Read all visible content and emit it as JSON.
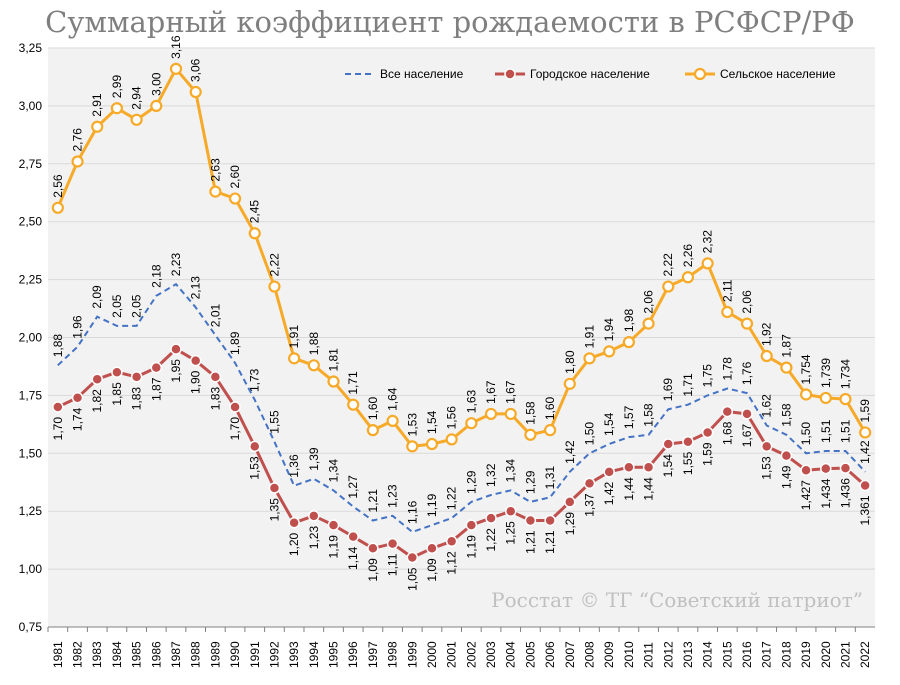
{
  "chart_data": {
    "type": "line",
    "title": "Суммарный коэффициент рождаемости в РСФСР/РФ",
    "watermark": "Росстат © ТГ “Советский патриот”",
    "x": [
      "1981",
      "1982",
      "1983",
      "1984",
      "1985",
      "1986",
      "1987",
      "1988",
      "1989",
      "1990",
      "1991",
      "1992",
      "1993",
      "1994",
      "1995",
      "1996",
      "1997",
      "1998",
      "1999",
      "2000",
      "2001",
      "2002",
      "2003",
      "2004",
      "2005",
      "2006",
      "2007",
      "2008",
      "2009",
      "2010",
      "2011",
      "2012",
      "2013",
      "2014",
      "2015",
      "2016",
      "2017",
      "2018",
      "2019",
      "2020",
      "2021",
      "2022"
    ],
    "ylim": [
      0.75,
      3.25
    ],
    "yticks": [
      "0,75",
      "1,00",
      "1,25",
      "1,50",
      "1,75",
      "2,00",
      "2,25",
      "2,50",
      "2,75",
      "3,00",
      "3,25"
    ],
    "grid": true,
    "legend_position": "top",
    "series": [
      {
        "name": "Все население",
        "color": "#4472c4",
        "style": "dashed",
        "values": [
          1.88,
          1.96,
          2.09,
          2.05,
          2.05,
          2.18,
          2.23,
          2.13,
          2.01,
          1.89,
          1.73,
          1.55,
          1.36,
          1.39,
          1.34,
          1.27,
          1.21,
          1.23,
          1.16,
          1.19,
          1.22,
          1.29,
          1.32,
          1.34,
          1.29,
          1.31,
          1.42,
          1.5,
          1.54,
          1.57,
          1.58,
          1.69,
          1.71,
          1.75,
          1.78,
          1.76,
          1.62,
          1.58,
          1.5,
          1.51,
          1.51,
          1.42
        ],
        "labels": [
          "1,88",
          "1,96",
          "2,09",
          "2,05",
          "2,05",
          "2,18",
          "2,23",
          "2,13",
          "2,01",
          "1,89",
          "1,73",
          "1,55",
          "1,36",
          "1,39",
          "1,34",
          "1,27",
          "1,21",
          "1,23",
          "1,16",
          "1,19",
          "1,22",
          "1,29",
          "1,32",
          "1,34",
          "1,29",
          "1,31",
          "1,42",
          "1,50",
          "1,54",
          "1,57",
          "1,58",
          "1,69",
          "1,71",
          "1,75",
          "1,78",
          "1,76",
          "1,62",
          "1,58",
          "1,50",
          "1,51",
          "1,51",
          "1,42"
        ]
      },
      {
        "name": "Городское население",
        "color": "#c0504d",
        "style": "solid-marker",
        "values": [
          1.7,
          1.74,
          1.82,
          1.85,
          1.83,
          1.87,
          1.95,
          1.9,
          1.83,
          1.7,
          1.53,
          1.35,
          1.2,
          1.23,
          1.19,
          1.14,
          1.09,
          1.11,
          1.05,
          1.09,
          1.12,
          1.19,
          1.22,
          1.25,
          1.21,
          1.21,
          1.29,
          1.37,
          1.42,
          1.44,
          1.44,
          1.54,
          1.55,
          1.59,
          1.68,
          1.67,
          1.53,
          1.49,
          1.427,
          1.434,
          1.436,
          1.361
        ],
        "labels": [
          "1,70",
          "1,74",
          "1,82",
          "1,85",
          "1,83",
          "1,87",
          "1,95",
          "1,90",
          "1,83",
          "1,70",
          "1,53",
          "1,35",
          "1,20",
          "1,23",
          "1,19",
          "1,14",
          "1,09",
          "1,11",
          "1,05",
          "1,09",
          "1,12",
          "1,19",
          "1,22",
          "1,25",
          "1,21",
          "1,21",
          "1,29",
          "1,37",
          "1,42",
          "1,44",
          "1,44",
          "1,54",
          "1,55",
          "1,59",
          "1,68",
          "1,67",
          "1,53",
          "1,49",
          "1,427",
          "1,434",
          "1,436",
          "1,361"
        ]
      },
      {
        "name": "Сельское население",
        "color": "#f7a928",
        "style": "solid-marker",
        "values": [
          2.56,
          2.76,
          2.91,
          2.99,
          2.94,
          3.0,
          3.16,
          3.06,
          2.63,
          2.6,
          2.45,
          2.22,
          1.91,
          1.88,
          1.81,
          1.71,
          1.6,
          1.64,
          1.53,
          1.54,
          1.56,
          1.63,
          1.67,
          1.67,
          1.58,
          1.6,
          1.8,
          1.91,
          1.94,
          1.98,
          2.06,
          2.22,
          2.26,
          2.32,
          2.11,
          2.06,
          1.92,
          1.87,
          1.754,
          1.739,
          1.734,
          1.59
        ],
        "labels": [
          "2,56",
          "2,76",
          "2,91",
          "2,99",
          "2,94",
          "3,00",
          "3,16",
          "3,06",
          "2,63",
          "2,60",
          "2,45",
          "2,22",
          "1,91",
          "1,88",
          "1,81",
          "1,71",
          "1,60",
          "1,64",
          "1,53",
          "1,54",
          "1,56",
          "1,63",
          "1,67",
          "1,67",
          "1,58",
          "1,60",
          "1,80",
          "1,91",
          "1,94",
          "1,98",
          "2,06",
          "2,22",
          "2,26",
          "2,32",
          "2,11",
          "2,06",
          "1,92",
          "1,87",
          "1,754",
          "1,739",
          "1,734",
          "1,59"
        ]
      }
    ]
  }
}
